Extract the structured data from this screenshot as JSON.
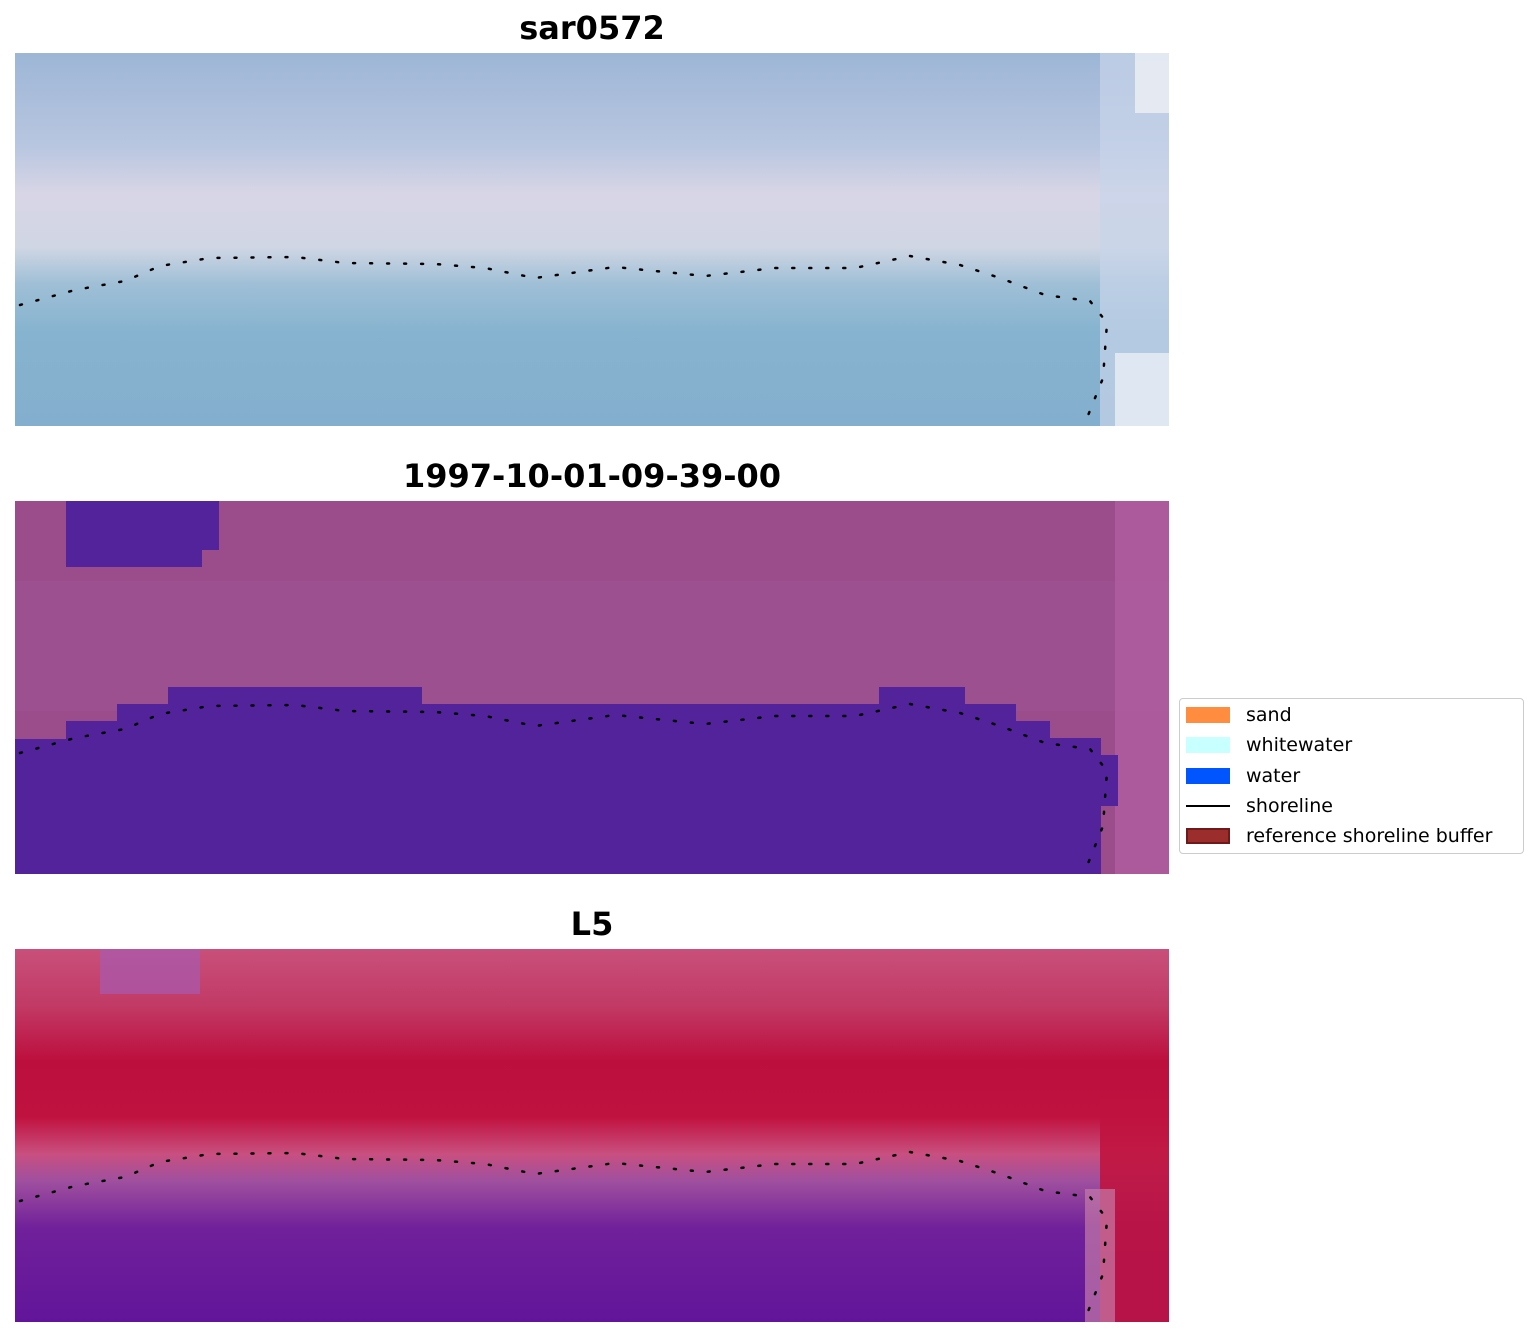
{
  "panels": [
    {
      "id": "rgb",
      "title": "sar0572"
    },
    {
      "id": "classified",
      "title": "1997-10-01-09-39-00"
    },
    {
      "id": "index",
      "title": "L5"
    }
  ],
  "legend": {
    "items": [
      {
        "label": "sand",
        "color": "#ff8c3f",
        "type": "patch"
      },
      {
        "label": "whitewater",
        "color": "#c8ffff",
        "type": "patch"
      },
      {
        "label": "water",
        "color": "#0055ff",
        "type": "patch"
      },
      {
        "label": "shoreline",
        "color": "#000000",
        "type": "line"
      },
      {
        "label": "reference shoreline buffer",
        "color": "#9b2d2d",
        "edge": "#6e1a1a",
        "type": "patch"
      }
    ]
  },
  "colors": {
    "rgb_land": "#c3cde0",
    "rgb_water": "#86b0cf",
    "classified_land": "#9a4d8a",
    "classified_water": "#52239a",
    "index_land": "#c3153f",
    "index_water": "#6a1596",
    "index_transition": "#c267a2"
  }
}
